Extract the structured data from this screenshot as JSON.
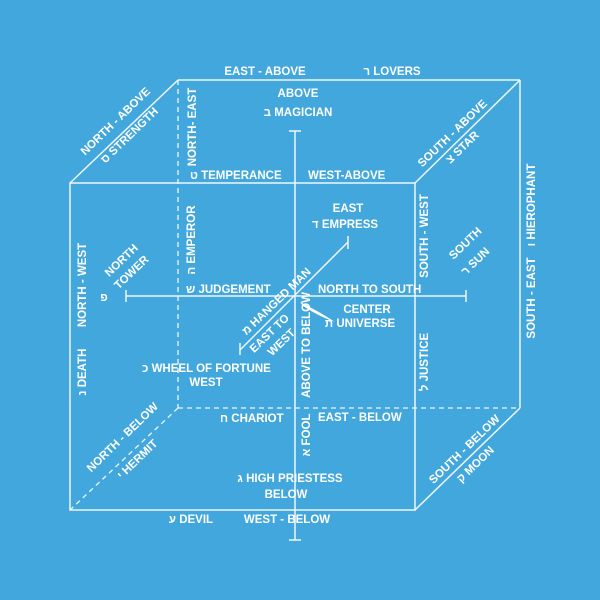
{
  "colors": {
    "background": "#42a7dc",
    "lines": "#ffffff"
  },
  "labels": {
    "east_above": "EAST - ABOVE",
    "lovers": "ר LOVERS",
    "above": "ABOVE",
    "magician": "ב MAGICIAN",
    "north_above": "NORTH - ABOVE",
    "strength": "ס STRENGTH",
    "north_east": "NORTH- EAST",
    "temperance": "ט TEMPERANCE",
    "west_above": "WEST-ABOVE",
    "south_above": "SOUTH - ABOVE",
    "star": "צ STAR",
    "hierophant": "ו HIEROPHANT",
    "south_east": "SOUTH - EAST",
    "east": "EAST",
    "empress": "ד  EMPRESS",
    "south_west": "SOUTH - WEST",
    "south": "SOUTH",
    "sun": "ר SUN",
    "north_west": "NORTH - WEST",
    "north": "NORTH",
    "tower": "TOWER",
    "tower_letter": "פ",
    "emperor": "ה EMPEROR",
    "judgement": "ש JUDGEMENT",
    "hanged_man": "מ HANGED MAN",
    "north_to_south": "NORTH TO SOUTH",
    "center": "CENTER",
    "universe": "ת UNIVERSE",
    "east_to": "EAST TO",
    "west_diag": "WEST",
    "above_to_below": "ABOVE TO BELOW",
    "fool": "א FOOL",
    "justice": "ל JUSTICE",
    "death": "נ DEATH",
    "wheel": "כ  WHEEL OF FORTUNE",
    "west": "WEST",
    "chariot": "ח CHARIOT",
    "east_below": "EAST - BELOW",
    "north_below": "NORTH - BELOW",
    "hermit": "י HERMIT",
    "high_priestess": "ג  HIGH PRIESTESS",
    "below": "BELOW",
    "devil": "ע DEVIL",
    "west_below": "WEST - BELOW",
    "south_below": "SOUTH - BELOW",
    "moon": "ק MOON"
  }
}
